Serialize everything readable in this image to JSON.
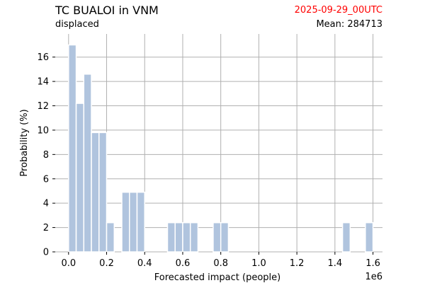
{
  "header": {
    "title": "TC BUALOI in VNM",
    "subtitle": "displaced",
    "date": "2025-09-29_00UTC",
    "mean": "Mean: 284713"
  },
  "colors": {
    "bar": "#b0c4de",
    "grid": "#b0b0b0",
    "date": "#ff0000"
  },
  "chart_data": {
    "type": "bar",
    "xlabel": "Forecasted impact (people)",
    "ylabel": "Probability (%)",
    "x_offset_label": "1e6",
    "xlim": [
      -0.07,
      1.65
    ],
    "ylim": [
      0,
      17.9
    ],
    "x_ticks": [
      0.0,
      0.2,
      0.4,
      0.6,
      0.8,
      1.0,
      1.2,
      1.4,
      1.6
    ],
    "x_tick_labels": [
      "0.0",
      "0.2",
      "0.4",
      "0.6",
      "0.8",
      "1.0",
      "1.2",
      "1.4",
      "1.6"
    ],
    "y_ticks": [
      0,
      2,
      4,
      6,
      8,
      10,
      12,
      14,
      16
    ],
    "y_tick_labels": [
      "0",
      "2",
      "4",
      "6",
      "8",
      "10",
      "12",
      "14",
      "16"
    ],
    "grid": true,
    "bin_width": 0.04,
    "bins": [
      {
        "x": 0.0,
        "value": 17.0
      },
      {
        "x": 0.04,
        "value": 12.2
      },
      {
        "x": 0.08,
        "value": 14.6
      },
      {
        "x": 0.12,
        "value": 9.8
      },
      {
        "x": 0.16,
        "value": 9.8
      },
      {
        "x": 0.2,
        "value": 2.4
      },
      {
        "x": 0.28,
        "value": 4.9
      },
      {
        "x": 0.32,
        "value": 4.9
      },
      {
        "x": 0.36,
        "value": 4.9
      },
      {
        "x": 0.52,
        "value": 2.4
      },
      {
        "x": 0.56,
        "value": 2.4
      },
      {
        "x": 0.6,
        "value": 2.4
      },
      {
        "x": 0.64,
        "value": 2.4
      },
      {
        "x": 0.76,
        "value": 2.4
      },
      {
        "x": 0.8,
        "value": 2.4
      },
      {
        "x": 1.44,
        "value": 2.4
      },
      {
        "x": 1.56,
        "value": 2.4
      }
    ]
  }
}
